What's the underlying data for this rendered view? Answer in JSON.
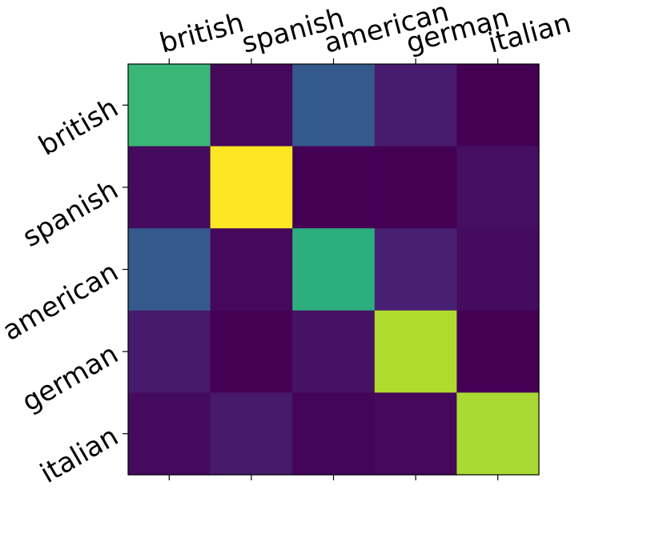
{
  "chart_data": {
    "type": "heatmap",
    "title": "",
    "xlabel": "",
    "ylabel": "",
    "x_categories": [
      "british",
      "spanish",
      "american",
      "german",
      "italian"
    ],
    "y_categories": [
      "british",
      "spanish",
      "american",
      "german",
      "italian"
    ],
    "x_tick_position": "top",
    "x_tick_rotation_deg": -15,
    "y_tick_rotation_deg": -30,
    "colormap": "viridis",
    "value_range": [
      0,
      1
    ],
    "grid": false,
    "legend": "none",
    "values": [
      [
        0.67,
        0.02,
        0.28,
        0.08,
        0.0
      ],
      [
        0.03,
        1.0,
        0.0,
        0.0,
        0.04
      ],
      [
        0.28,
        0.02,
        0.63,
        0.09,
        0.03
      ],
      [
        0.07,
        0.0,
        0.05,
        0.88,
        0.0
      ],
      [
        0.03,
        0.07,
        0.01,
        0.02,
        0.87
      ]
    ]
  }
}
